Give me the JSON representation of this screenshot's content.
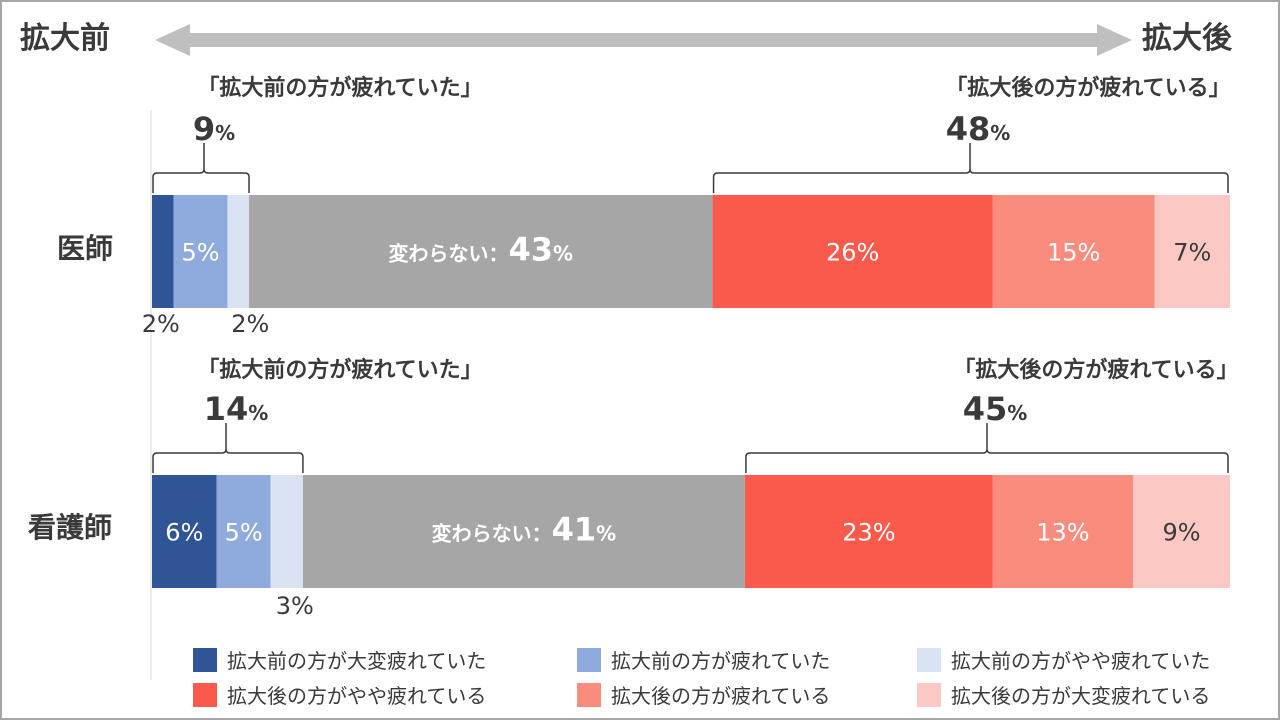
{
  "header": {
    "left_label": "拡大前",
    "right_label": "拡大後"
  },
  "colors": {
    "before_strong": "#2f5597",
    "before_mid": "#8faadc",
    "before_weak": "#dae3f3",
    "neutral": "#a6a6a6",
    "after_weak": "#fa5a4b",
    "after_mid": "#fa8c7e",
    "after_strong": "#fcc8c3",
    "arrow": "#bfbfbf",
    "text": "#3a3a3a"
  },
  "chart_data": {
    "type": "bar",
    "orientation": "horizontal-stacked",
    "categories": [
      "医師",
      "看護師"
    ],
    "unit": "%",
    "series": [
      {
        "name": "拡大前の方が大変疲れていた",
        "values": [
          2,
          6
        ]
      },
      {
        "name": "拡大前の方が疲れていた",
        "values": [
          5,
          5
        ]
      },
      {
        "name": "拡大前の方がやや疲れていた",
        "values": [
          2,
          3
        ]
      },
      {
        "name": "変わらない",
        "values": [
          43,
          41
        ]
      },
      {
        "name": "拡大後の方がやや疲れている",
        "values": [
          26,
          23
        ]
      },
      {
        "name": "拡大後の方が疲れている",
        "values": [
          15,
          13
        ]
      },
      {
        "name": "拡大後の方が大変疲れている",
        "values": [
          7,
          9
        ]
      }
    ],
    "groups": {
      "before": {
        "label": "「拡大前の方が疲れていた」",
        "values": [
          9,
          14
        ]
      },
      "after": {
        "label": "「拡大後の方が疲れている」",
        "values": [
          48,
          45
        ]
      }
    },
    "neutral_label": "変わらない：",
    "legend_position": "bottom"
  }
}
